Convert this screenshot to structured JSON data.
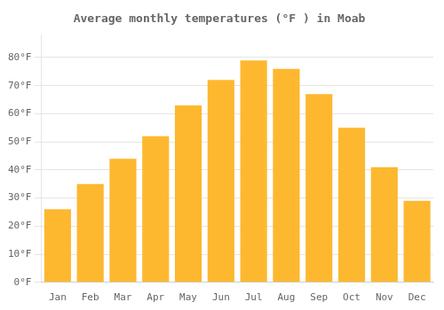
{
  "chart_data": {
    "type": "bar",
    "title": "Average monthly temperatures (°F ) in Moab",
    "categories": [
      "Jan",
      "Feb",
      "Mar",
      "Apr",
      "May",
      "Jun",
      "Jul",
      "Aug",
      "Sep",
      "Oct",
      "Nov",
      "Dec"
    ],
    "values": [
      26,
      35,
      44,
      52,
      63,
      72,
      79,
      76,
      67,
      55,
      41,
      29
    ],
    "color": "#FDB830",
    "ylim": [
      0,
      88
    ],
    "yticks": [
      {
        "value": 0,
        "label": "0°F"
      },
      {
        "value": 10,
        "label": "10°F"
      },
      {
        "value": 20,
        "label": "20°F"
      },
      {
        "value": 30,
        "label": "30°F"
      },
      {
        "value": 40,
        "label": "40°F"
      },
      {
        "value": 50,
        "label": "50°F"
      },
      {
        "value": 60,
        "label": "60°F"
      },
      {
        "value": 70,
        "label": "70°F"
      },
      {
        "value": 80,
        "label": "80°F"
      }
    ],
    "grid": true
  }
}
